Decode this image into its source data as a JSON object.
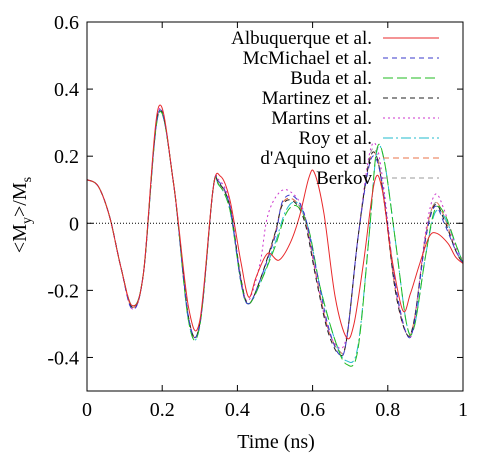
{
  "chart_data": {
    "type": "line",
    "xlabel": "Time (ns)",
    "ylabel": "<M_y>/M_s",
    "xlim": [
      0,
      1
    ],
    "ylim": [
      -0.5,
      0.6
    ],
    "xticks": [
      0,
      0.2,
      0.4,
      0.6,
      0.8,
      1
    ],
    "xtick_labels": [
      "0",
      "0.2",
      "0.4",
      "0.6",
      "0.8",
      "1"
    ],
    "yticks": [
      -0.4,
      -0.2,
      0,
      0.2,
      0.4,
      0.6
    ],
    "ytick_labels": [
      "-0.4",
      "-0.2",
      "0",
      "0.2",
      "0.4",
      "0.6"
    ],
    "zero_line": true,
    "grid": false,
    "legend_position": "top-right",
    "series": [
      {
        "name": "Albuquerque et al.",
        "color": "#e8292b",
        "dash": "",
        "x": [
          0,
          0.03,
          0.06,
          0.09,
          0.12,
          0.15,
          0.19,
          0.23,
          0.27,
          0.3,
          0.335,
          0.355,
          0.38,
          0.41,
          0.43,
          0.45,
          0.48,
          0.51,
          0.54,
          0.565,
          0.59,
          0.605,
          0.63,
          0.66,
          0.69,
          0.71,
          0.735,
          0.765,
          0.785,
          0.81,
          0.84,
          0.86,
          0.885,
          0.91,
          0.93,
          0.96,
          0.98,
          1
        ],
        "y": [
          0.13,
          0.11,
          0.02,
          -0.13,
          -0.245,
          -0.15,
          0.345,
          0.12,
          -0.25,
          -0.29,
          0.1,
          0.14,
          0.07,
          -0.12,
          -0.22,
          -0.16,
          -0.09,
          -0.11,
          -0.06,
          0.02,
          0.135,
          0.15,
          0.03,
          -0.22,
          -0.34,
          -0.3,
          -0.12,
          0.125,
          0.1,
          -0.1,
          -0.26,
          -0.21,
          -0.12,
          -0.04,
          -0.03,
          -0.06,
          -0.1,
          -0.12
        ]
      },
      {
        "name": "McMichael et al.",
        "color": "#3a3acb",
        "dash": "5,4",
        "x": [
          0,
          0.03,
          0.06,
          0.09,
          0.12,
          0.15,
          0.19,
          0.23,
          0.27,
          0.3,
          0.335,
          0.35,
          0.38,
          0.41,
          0.43,
          0.46,
          0.5,
          0.52,
          0.55,
          0.58,
          0.61,
          0.64,
          0.67,
          0.69,
          0.72,
          0.75,
          0.77,
          0.79,
          0.82,
          0.85,
          0.87,
          0.9,
          0.925,
          0.95,
          0.98,
          1
        ],
        "y": [
          0.13,
          0.11,
          0.02,
          -0.13,
          -0.255,
          -0.15,
          0.33,
          0.12,
          -0.28,
          -0.3,
          0.1,
          0.125,
          0.05,
          -0.18,
          -0.24,
          -0.17,
          -0.04,
          0.065,
          0.08,
          0.02,
          -0.14,
          -0.3,
          -0.39,
          -0.35,
          -0.05,
          0.17,
          0.19,
          0.08,
          -0.18,
          -0.33,
          -0.3,
          -0.05,
          0.05,
          0,
          -0.08,
          -0.12
        ]
      },
      {
        "name": "Buda et al.",
        "color": "#22bb22",
        "dash": "10,4",
        "x": [
          0,
          0.03,
          0.06,
          0.09,
          0.12,
          0.15,
          0.19,
          0.23,
          0.27,
          0.3,
          0.335,
          0.35,
          0.38,
          0.41,
          0.43,
          0.46,
          0.5,
          0.53,
          0.56,
          0.59,
          0.62,
          0.66,
          0.69,
          0.72,
          0.75,
          0.77,
          0.79,
          0.82,
          0.85,
          0.87,
          0.9,
          0.925,
          0.95,
          0.98,
          1
        ],
        "y": [
          0.13,
          0.11,
          0.02,
          -0.13,
          -0.245,
          -0.15,
          0.325,
          0.12,
          -0.29,
          -0.305,
          0.1,
          0.115,
          0.04,
          -0.18,
          -0.24,
          -0.18,
          -0.07,
          0.03,
          0.05,
          -0.02,
          -0.19,
          -0.35,
          -0.42,
          -0.38,
          -0.04,
          0.215,
          0.19,
          -0.05,
          -0.3,
          -0.31,
          -0.1,
          0.04,
          0.03,
          -0.06,
          -0.12
        ]
      },
      {
        "name": "Martinez et al.",
        "color": "#222222",
        "dash": "5,4",
        "x": [
          0,
          0.03,
          0.06,
          0.09,
          0.12,
          0.15,
          0.19,
          0.23,
          0.27,
          0.3,
          0.335,
          0.35,
          0.38,
          0.41,
          0.43,
          0.46,
          0.5,
          0.52,
          0.55,
          0.58,
          0.61,
          0.64,
          0.67,
          0.69,
          0.72,
          0.75,
          0.77,
          0.79,
          0.82,
          0.85,
          0.87,
          0.9,
          0.925,
          0.95,
          0.98,
          1
        ],
        "y": [
          0.13,
          0.11,
          0.02,
          -0.13,
          -0.25,
          -0.15,
          0.33,
          0.12,
          -0.28,
          -0.3,
          0.1,
          0.12,
          0.05,
          -0.17,
          -0.24,
          -0.17,
          -0.03,
          0.055,
          0.065,
          0,
          -0.17,
          -0.32,
          -0.39,
          -0.35,
          -0.05,
          0.18,
          0.2,
          0.07,
          -0.2,
          -0.33,
          -0.29,
          -0.05,
          0.055,
          0.01,
          -0.08,
          -0.12
        ]
      },
      {
        "name": "Martins et al.",
        "color": "#cc33cc",
        "dash": "2,3",
        "x": [
          0,
          0.03,
          0.06,
          0.09,
          0.12,
          0.15,
          0.19,
          0.23,
          0.27,
          0.3,
          0.335,
          0.35,
          0.38,
          0.41,
          0.43,
          0.46,
          0.48,
          0.51,
          0.54,
          0.575,
          0.6,
          0.63,
          0.66,
          0.69,
          0.72,
          0.75,
          0.77,
          0.79,
          0.82,
          0.85,
          0.87,
          0.9,
          0.925,
          0.95,
          0.98,
          1
        ],
        "y": [
          0.13,
          0.11,
          0.02,
          -0.13,
          -0.255,
          -0.15,
          0.335,
          0.12,
          -0.28,
          -0.3,
          0.1,
          0.13,
          0.06,
          -0.17,
          -0.23,
          -0.12,
          0.02,
          0.09,
          0.095,
          0.04,
          -0.1,
          -0.27,
          -0.36,
          -0.34,
          -0.05,
          0.2,
          0.23,
          0.1,
          -0.19,
          -0.33,
          -0.3,
          -0.03,
          0.085,
          0.04,
          -0.07,
          -0.11
        ]
      },
      {
        "name": "Roy et al.",
        "color": "#22bbcc",
        "dash": "10,3,2,3",
        "x": [
          0,
          0.03,
          0.06,
          0.09,
          0.12,
          0.15,
          0.19,
          0.23,
          0.27,
          0.3,
          0.335,
          0.35,
          0.38,
          0.41,
          0.43,
          0.46,
          0.5,
          0.53,
          0.56,
          0.59,
          0.62,
          0.66,
          0.69,
          0.72,
          0.75,
          0.77,
          0.79,
          0.82,
          0.85,
          0.87,
          0.9,
          0.925,
          0.95,
          0.98,
          1
        ],
        "y": [
          0.13,
          0.11,
          0.02,
          -0.13,
          -0.245,
          -0.15,
          0.325,
          0.12,
          -0.29,
          -0.305,
          0.1,
          0.115,
          0.04,
          -0.18,
          -0.24,
          -0.18,
          -0.06,
          0.04,
          0.06,
          -0.02,
          -0.19,
          -0.35,
          -0.41,
          -0.37,
          -0.04,
          0.21,
          0.19,
          -0.05,
          -0.3,
          -0.31,
          -0.1,
          0.03,
          0.02,
          -0.06,
          -0.12
        ]
      },
      {
        "name": "d'Aquino et al.",
        "color": "#e8734a",
        "dash": "6,4",
        "x": [
          0,
          0.03,
          0.06,
          0.09,
          0.12,
          0.15,
          0.19,
          0.23,
          0.27,
          0.3,
          0.335,
          0.35,
          0.38,
          0.41,
          0.43,
          0.46,
          0.5,
          0.52,
          0.55,
          0.58,
          0.61,
          0.64,
          0.67,
          0.69,
          0.72,
          0.75,
          0.77,
          0.79,
          0.82,
          0.85,
          0.87,
          0.9,
          0.925,
          0.95,
          0.98,
          1
        ],
        "y": [
          0.13,
          0.11,
          0.02,
          -0.13,
          -0.25,
          -0.15,
          0.33,
          0.12,
          -0.28,
          -0.3,
          0.1,
          0.12,
          0.05,
          -0.17,
          -0.24,
          -0.17,
          -0.03,
          0.06,
          0.07,
          0.01,
          -0.16,
          -0.31,
          -0.38,
          -0.35,
          -0.05,
          0.18,
          0.2,
          0.07,
          -0.2,
          -0.33,
          -0.29,
          -0.04,
          0.06,
          0.02,
          -0.08,
          -0.12
        ]
      },
      {
        "name": "Berkov",
        "color": "#999999",
        "dash": "5,4",
        "x": [
          0,
          0.03,
          0.06,
          0.09,
          0.12,
          0.15,
          0.19,
          0.23,
          0.27,
          0.3,
          0.335,
          0.35,
          0.38,
          0.41,
          0.43,
          0.46,
          0.5,
          0.52,
          0.55,
          0.58,
          0.61,
          0.64,
          0.67,
          0.69,
          0.72,
          0.75,
          0.77,
          0.79,
          0.82,
          0.85,
          0.87,
          0.9,
          0.925,
          0.95,
          0.98,
          1
        ],
        "y": [
          0.13,
          0.11,
          0.02,
          -0.13,
          -0.25,
          -0.15,
          0.33,
          0.12,
          -0.28,
          -0.3,
          0.1,
          0.12,
          0.05,
          -0.17,
          -0.24,
          -0.17,
          -0.03,
          0.06,
          0.07,
          0.01,
          -0.16,
          -0.31,
          -0.38,
          -0.35,
          -0.05,
          0.19,
          0.21,
          0.08,
          -0.19,
          -0.33,
          -0.29,
          -0.04,
          0.06,
          0.02,
          -0.08,
          -0.12
        ]
      }
    ]
  }
}
